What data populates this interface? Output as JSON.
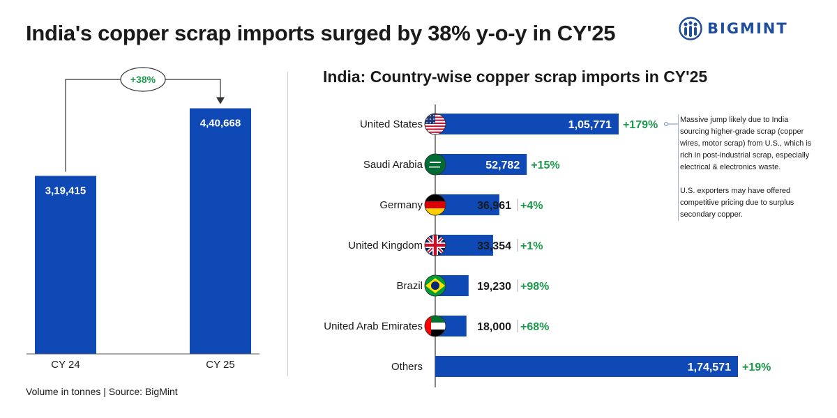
{
  "title": "India's copper scrap imports surged by 38% y-o-y in CY'25",
  "brand": {
    "name": "BIGMINT",
    "color": "#1f4e9c"
  },
  "colors": {
    "bar": "#0f49b5",
    "positive": "#1a9a4a",
    "text": "#1a1a1a"
  },
  "footnote": "Volume in tonnes  |  Source: BigMint",
  "chart_data": [
    {
      "type": "bar",
      "categories": [
        "CY 24",
        "CY 25"
      ],
      "values": [
        319415,
        440668
      ],
      "value_labels": [
        "3,19,415",
        "4,40,668"
      ],
      "change_label": "+38%",
      "ylim": [
        0,
        500000
      ]
    },
    {
      "type": "bar",
      "orientation": "horizontal",
      "title": "India: Country-wise copper scrap imports in CY'25",
      "categories": [
        "United States",
        "Saudi Arabia",
        "Germany",
        "United Kingdom",
        "Brazil",
        "United Arab Emirates",
        "Others"
      ],
      "values": [
        105771,
        52782,
        36961,
        33354,
        19230,
        18000,
        174571
      ],
      "value_labels": [
        "1,05,771",
        "52,782",
        "36,961",
        "33,354",
        "19,230",
        "18,000",
        "1,74,571"
      ],
      "yoy_change": [
        "+179%",
        "+15%",
        "+4%",
        "+1%",
        "+98%",
        "+68%",
        "+19%"
      ],
      "flag_icons": [
        "us-flag-icon",
        "saudi-arabia-flag-icon",
        "germany-flag-icon",
        "uk-flag-icon",
        "brazil-flag-icon",
        "uae-flag-icon",
        null
      ],
      "annotation": {
        "target": "United States",
        "paragraphs": [
          "Massive jump likely due to India sourcing higher-grade scrap (copper wires, motor scrap) from U.S., which is rich in post-industrial scrap, especially electrical & electronics waste.",
          "U.S. exporters may have offered competitive pricing due to surplus secondary copper."
        ]
      }
    }
  ]
}
